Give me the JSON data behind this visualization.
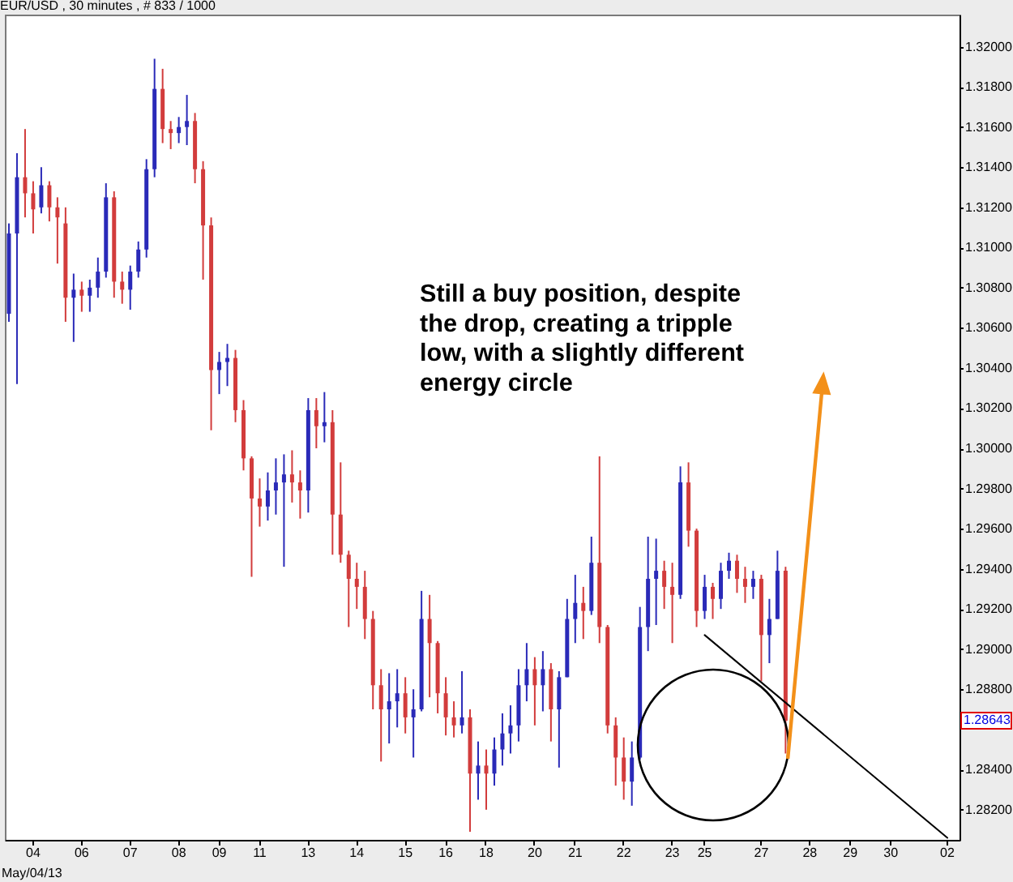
{
  "chart_data": {
    "type": "candlestick",
    "title": "EUR/USD , 30 minutes , # 833 / 1000",
    "categories": [
      null,
      null,
      null,
      "04",
      null,
      null,
      null,
      null,
      null,
      "06",
      null,
      null,
      null,
      null,
      null,
      "07",
      null,
      null,
      null,
      null,
      null,
      "08",
      null,
      null,
      null,
      null,
      "09",
      null,
      null,
      null,
      null,
      "11",
      null,
      null,
      null,
      null,
      null,
      "13",
      null,
      null,
      null,
      null,
      null,
      "14",
      null,
      null,
      null,
      null,
      null,
      "15",
      null,
      null,
      null,
      null,
      "16",
      null,
      null,
      null,
      null,
      "18",
      null,
      null,
      null,
      null,
      null,
      "20",
      null,
      null,
      null,
      null,
      "21",
      null,
      null,
      null,
      null,
      null,
      "22",
      null,
      null,
      null,
      null,
      null,
      "23",
      null,
      null,
      null,
      "25",
      null,
      null,
      null,
      null,
      null,
      null,
      "27",
      null,
      null,
      null,
      null,
      null,
      "28",
      null,
      null,
      null,
      null,
      "29",
      null,
      null,
      null,
      null,
      "30",
      null,
      null,
      null,
      null,
      null,
      null,
      "02",
      null
    ],
    "ohlc": [
      [
        1.3067,
        1.3112,
        1.3063,
        1.3107
      ],
      [
        1.3107,
        1.3147,
        1.3032,
        1.3135
      ],
      [
        1.3135,
        1.3159,
        1.3115,
        1.3127
      ],
      [
        1.3127,
        1.3133,
        1.3107,
        1.3119
      ],
      [
        1.312,
        1.314,
        1.3117,
        1.3131
      ],
      [
        1.3131,
        1.3133,
        1.3113,
        1.312
      ],
      [
        1.312,
        1.3125,
        1.3092,
        1.3115
      ],
      [
        1.3112,
        1.312,
        1.3063,
        1.3075
      ],
      [
        1.3075,
        1.3087,
        1.3053,
        1.3079
      ],
      [
        1.3079,
        1.3083,
        1.3068,
        1.3076
      ],
      [
        1.3076,
        1.3084,
        1.3068,
        1.308
      ],
      [
        1.308,
        1.3095,
        1.3075,
        1.3088
      ],
      [
        1.3088,
        1.3132,
        1.3085,
        1.3125
      ],
      [
        1.3125,
        1.3128,
        1.3075,
        1.3083
      ],
      [
        1.3083,
        1.3088,
        1.3072,
        1.3079
      ],
      [
        1.3079,
        1.3091,
        1.3069,
        1.3088
      ],
      [
        1.3088,
        1.3103,
        1.3085,
        1.3099
      ],
      [
        1.3099,
        1.3144,
        1.3095,
        1.3139
      ],
      [
        1.3139,
        1.3194,
        1.3135,
        1.3179
      ],
      [
        1.3179,
        1.3189,
        1.3152,
        1.3159
      ],
      [
        1.3159,
        1.3163,
        1.3149,
        1.3157
      ],
      [
        1.3157,
        1.3165,
        1.3152,
        1.316
      ],
      [
        1.316,
        1.3176,
        1.3151,
        1.3163
      ],
      [
        1.3163,
        1.3167,
        1.3132,
        1.3139
      ],
      [
        1.3139,
        1.3143,
        1.3084,
        1.3111
      ],
      [
        1.3111,
        1.3115,
        1.3009,
        1.3039
      ],
      [
        1.3039,
        1.3048,
        1.3027,
        1.3043
      ],
      [
        1.3043,
        1.3052,
        1.3031,
        1.3045
      ],
      [
        1.3045,
        1.3049,
        1.3013,
        1.3019
      ],
      [
        1.3019,
        1.3024,
        1.2989,
        1.2995
      ],
      [
        1.2995,
        1.2996,
        1.2936,
        1.2975
      ],
      [
        1.2975,
        1.2985,
        1.2961,
        1.2971
      ],
      [
        1.2971,
        1.2988,
        1.2964,
        1.2979
      ],
      [
        1.2979,
        1.2995,
        1.2967,
        1.2983
      ],
      [
        1.2983,
        1.2997,
        1.2941,
        1.2987
      ],
      [
        1.2987,
        1.2999,
        1.2973,
        1.2983
      ],
      [
        1.2983,
        1.2989,
        1.2965,
        1.2979
      ],
      [
        1.2979,
        1.3025,
        1.2968,
        1.3019
      ],
      [
        1.3019,
        1.3025,
        1.3,
        1.3011
      ],
      [
        1.3011,
        1.3028,
        1.3003,
        1.3013
      ],
      [
        1.3013,
        1.3019,
        1.2947,
        1.2967
      ],
      [
        1.2967,
        1.2993,
        1.2943,
        1.2947
      ],
      [
        1.2947,
        1.2949,
        1.2911,
        1.2935
      ],
      [
        1.2935,
        1.2943,
        1.292,
        1.2931
      ],
      [
        1.2931,
        1.2939,
        1.2905,
        1.2915
      ],
      [
        1.2915,
        1.2919,
        1.287,
        1.2882
      ],
      [
        1.2882,
        1.289,
        1.2844,
        1.287
      ],
      [
        1.287,
        1.2888,
        1.2853,
        1.2874
      ],
      [
        1.2874,
        1.289,
        1.2861,
        1.2878
      ],
      [
        1.2878,
        1.2886,
        1.2858,
        1.2866
      ],
      [
        1.2866,
        1.288,
        1.2846,
        1.287
      ],
      [
        1.287,
        1.2929,
        1.2869,
        1.2915
      ],
      [
        1.2915,
        1.2927,
        1.2876,
        1.2903
      ],
      [
        1.2903,
        1.2904,
        1.2868,
        1.2878
      ],
      [
        1.2878,
        1.2886,
        1.2857,
        1.2866
      ],
      [
        1.2866,
        1.2874,
        1.2856,
        1.2862
      ],
      [
        1.2862,
        1.2889,
        1.2858,
        1.2866
      ],
      [
        1.2866,
        1.287,
        1.2809,
        1.2838
      ],
      [
        1.2838,
        1.2854,
        1.2825,
        1.2842
      ],
      [
        1.2842,
        1.285,
        1.282,
        1.2838
      ],
      [
        1.2838,
        1.2856,
        1.2832,
        1.285
      ],
      [
        1.285,
        1.2868,
        1.2842,
        1.2858
      ],
      [
        1.2858,
        1.2872,
        1.2848,
        1.2862
      ],
      [
        1.2862,
        1.289,
        1.2854,
        1.2882
      ],
      [
        1.2882,
        1.2903,
        1.2874,
        1.289
      ],
      [
        1.289,
        1.2896,
        1.2862,
        1.2882
      ],
      [
        1.2882,
        1.2899,
        1.2869,
        1.289
      ],
      [
        1.289,
        1.2893,
        1.2854,
        1.287
      ],
      [
        1.287,
        1.2889,
        1.2841,
        1.2886
      ],
      [
        1.2886,
        1.2925,
        1.2886,
        1.2915
      ],
      [
        1.2915,
        1.2937,
        1.2903,
        1.2923
      ],
      [
        1.2923,
        1.2931,
        1.2905,
        1.2919
      ],
      [
        1.2919,
        1.2956,
        1.2917,
        1.2943
      ],
      [
        1.2943,
        1.2996,
        1.2903,
        1.2911
      ],
      [
        1.2911,
        1.2912,
        1.2858,
        1.2862
      ],
      [
        1.2862,
        1.2866,
        1.2832,
        1.2846
      ],
      [
        1.2846,
        1.2856,
        1.2825,
        1.2834
      ],
      [
        1.2834,
        1.2854,
        1.2822,
        1.2846
      ],
      [
        1.2846,
        1.2921,
        1.2845,
        1.2911
      ],
      [
        1.2911,
        1.2956,
        1.2899,
        1.2935
      ],
      [
        1.2935,
        1.2955,
        1.2912,
        1.2939
      ],
      [
        1.2939,
        1.2944,
        1.292,
        1.2931
      ],
      [
        1.2931,
        1.2943,
        1.2903,
        1.2927
      ],
      [
        1.2927,
        1.2991,
        1.2925,
        1.2983
      ],
      [
        1.2983,
        1.2993,
        1.2951,
        1.2959
      ],
      [
        1.2959,
        1.296,
        1.2911,
        1.2919
      ],
      [
        1.2919,
        1.2937,
        1.2915,
        1.2931
      ],
      [
        1.2931,
        1.2933,
        1.2915,
        1.2925
      ],
      [
        1.2925,
        1.2943,
        1.292,
        1.2939
      ],
      [
        1.2939,
        1.2948,
        1.2935,
        1.2944
      ],
      [
        1.2944,
        1.2947,
        1.2928,
        1.2935
      ],
      [
        1.2935,
        1.2941,
        1.2923,
        1.2931
      ],
      [
        1.2931,
        1.2939,
        1.2925,
        1.2935
      ],
      [
        1.2935,
        1.2937,
        1.2884,
        1.2907
      ],
      [
        1.2907,
        1.2925,
        1.2893,
        1.2915
      ],
      [
        1.2915,
        1.2949,
        1.2915,
        1.2939
      ],
      [
        1.2939,
        1.2941,
        1.2848,
        1.28643
      ],
      null,
      null,
      null,
      null,
      null,
      null,
      null,
      null,
      null,
      null,
      null,
      null,
      null,
      null,
      null,
      null,
      null,
      null,
      null,
      null,
      null
    ],
    "colors": [
      "#2a2ab8",
      "#2a2ab8",
      "#d23c3c",
      "#d23c3c",
      "#2a2ab8",
      "#d23c3c",
      "#d23c3c",
      "#d23c3c",
      "#2a2ab8",
      "#d23c3c",
      "#2a2ab8",
      "#2a2ab8",
      "#2a2ab8",
      "#d23c3c",
      "#d23c3c",
      "#2a2ab8",
      "#2a2ab8",
      "#2a2ab8",
      "#2a2ab8",
      "#d23c3c",
      "#d23c3c",
      "#2a2ab8",
      "#2a2ab8",
      "#d23c3c",
      "#d23c3c",
      "#d23c3c",
      "#2a2ab8",
      "#2a2ab8",
      "#d23c3c",
      "#d23c3c",
      "#d23c3c",
      "#d23c3c",
      "#2a2ab8",
      "#2a2ab8",
      "#2a2ab8",
      "#d23c3c",
      "#d23c3c",
      "#2a2ab8",
      "#d23c3c",
      "#2a2ab8",
      "#d23c3c",
      "#d23c3c",
      "#d23c3c",
      "#d23c3c",
      "#d23c3c",
      "#d23c3c",
      "#d23c3c",
      "#2a2ab8",
      "#2a2ab8",
      "#d23c3c",
      "#2a2ab8",
      "#2a2ab8",
      "#d23c3c",
      "#d23c3c",
      "#d23c3c",
      "#d23c3c",
      "#2a2ab8",
      "#d23c3c",
      "#2a2ab8",
      "#d23c3c",
      "#2a2ab8",
      "#2a2ab8",
      "#2a2ab8",
      "#2a2ab8",
      "#2a2ab8",
      "#d23c3c",
      "#2a2ab8",
      "#d23c3c",
      "#2a2ab8",
      "#2a2ab8",
      "#2a2ab8",
      "#d23c3c",
      "#2a2ab8",
      "#d23c3c",
      "#d23c3c",
      "#d23c3c",
      "#d23c3c",
      "#2a2ab8",
      "#2a2ab8",
      "#2a2ab8",
      "#2a2ab8",
      "#d23c3c",
      "#d23c3c",
      "#2a2ab8",
      "#d23c3c",
      "#d23c3c",
      "#2a2ab8",
      "#d23c3c",
      "#2a2ab8",
      "#2a2ab8",
      "#d23c3c",
      "#d23c3c",
      "#2a2ab8",
      "#d23c3c",
      "#2a2ab8",
      "#2a2ab8",
      "#d23c3c",
      null,
      null,
      null,
      null,
      null,
      null,
      null,
      null,
      null,
      null,
      null,
      null,
      null,
      null,
      null,
      null,
      null,
      null,
      null,
      null,
      null
    ],
    "series": [
      {
        "type": "line",
        "x": [
          "25",
          "02"
        ],
        "values": [
          1.2907,
          1.2806
        ],
        "color": "#000000"
      }
    ],
    "ylim": [
      1.2805,
      1.3216
    ],
    "yticks": [
      {
        "value": 1.282,
        "label": "1.28200"
      },
      {
        "value": 1.284,
        "label": "1.28400"
      },
      {
        "value": 1.288,
        "label": "1.28800"
      },
      {
        "value": 1.29,
        "label": "1.29000"
      },
      {
        "value": 1.292,
        "label": "1.29200"
      },
      {
        "value": 1.294,
        "label": "1.29400"
      },
      {
        "value": 1.296,
        "label": "1.29600"
      },
      {
        "value": 1.298,
        "label": "1.29800"
      },
      {
        "value": 1.3,
        "label": "1.30000"
      },
      {
        "value": 1.302,
        "label": "1.30200"
      },
      {
        "value": 1.304,
        "label": "1.30400"
      },
      {
        "value": 1.306,
        "label": "1.30600"
      },
      {
        "value": 1.308,
        "label": "1.30800"
      },
      {
        "value": 1.31,
        "label": "1.31000"
      },
      {
        "value": 1.312,
        "label": "1.31200"
      },
      {
        "value": 1.314,
        "label": "1.31400"
      },
      {
        "value": 1.316,
        "label": "1.31600"
      },
      {
        "value": 1.318,
        "label": "1.31800"
      },
      {
        "value": 1.32,
        "label": "1.32000"
      }
    ],
    "annotations": [
      "Still a buy position, despite the drop, creating a tripple low, with a slightly different energy circle",
      "May/04/13",
      {
        "text": "1.28643",
        "y": 1.28643
      }
    ]
  }
}
